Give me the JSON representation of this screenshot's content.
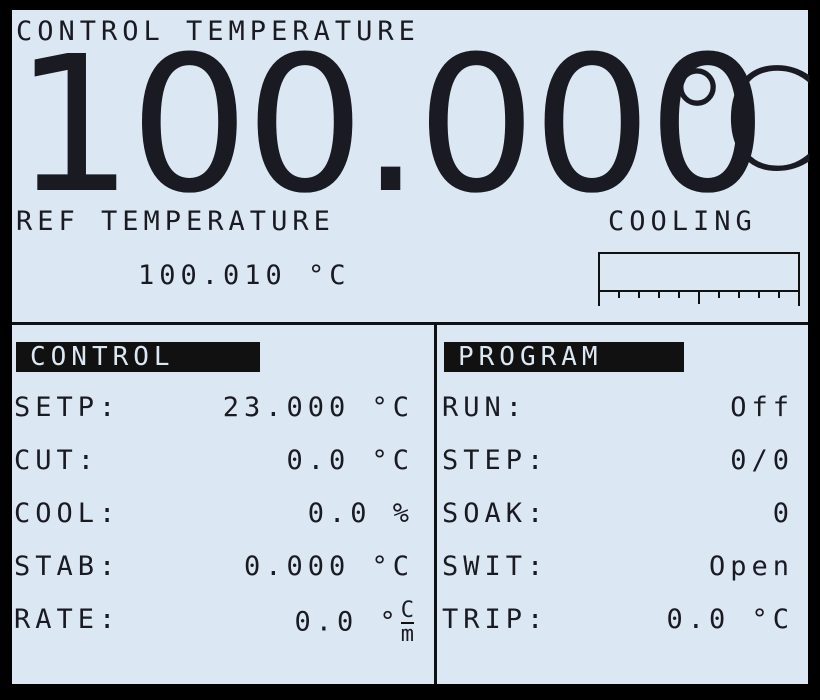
{
  "header": {
    "title": "CONTROL TEMPERATURE",
    "value": "100.000",
    "unit": "℃"
  },
  "reference": {
    "label": "REF TEMPERATURE",
    "value": "100.010 °C"
  },
  "cooling": {
    "label": "COOLING"
  },
  "panels": [
    {
      "title": "CONTROL",
      "rows": [
        {
          "label": "SETP:",
          "value": "23.000 °C"
        },
        {
          "label": "CUT:",
          "value": "0.0 °C"
        },
        {
          "label": "COOL:",
          "value": "0.0 %"
        },
        {
          "label": "STAB:",
          "value": "0.000 °C"
        },
        {
          "label": "RATE:",
          "value": "0.0 °",
          "unit": "C",
          "per": "m"
        }
      ]
    },
    {
      "title": "PROGRAM",
      "rows": [
        {
          "label": "RUN:",
          "value": "Off"
        },
        {
          "label": "STEP:",
          "value": "0/0"
        },
        {
          "label": "SOAK:",
          "value": "0"
        },
        {
          "label": "SWIT:",
          "value": "Open"
        },
        {
          "label": "TRIP:",
          "value": "0.0 °C"
        }
      ]
    }
  ]
}
